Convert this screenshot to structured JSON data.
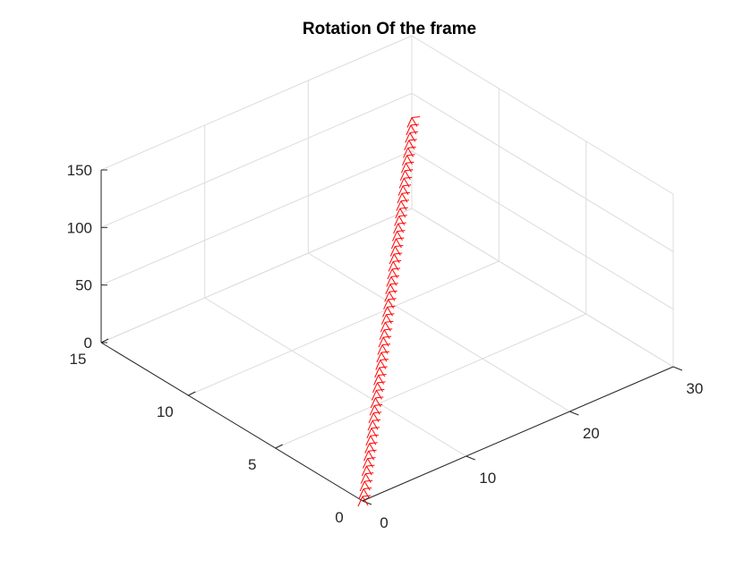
{
  "chart_data": {
    "type": "3d-line",
    "title": "Rotation Of the frame",
    "xlabel": "",
    "ylabel": "",
    "zlabel": "",
    "x_axis": {
      "range": [
        0,
        30
      ],
      "ticks": [
        0,
        10,
        20,
        30
      ]
    },
    "y_axis": {
      "range": [
        0,
        15
      ],
      "ticks": [
        0,
        5,
        10,
        15
      ]
    },
    "z_axis": {
      "range": [
        0,
        150
      ],
      "ticks": [
        0,
        50,
        100,
        150
      ]
    },
    "grid": true,
    "view": "3d-isometric",
    "series": [
      {
        "color": "#ff0000",
        "marker": "frame-glyph",
        "x": [
          0,
          0.6,
          1.2,
          1.8,
          2.4,
          3.0,
          3.6,
          4.2,
          4.8,
          5.4,
          6.0,
          6.6,
          7.2,
          7.8,
          8.4,
          9.0,
          9.6,
          10.2,
          10.8,
          11.4,
          12.0,
          12.6,
          13.2,
          13.8,
          14.4,
          15.0,
          15.6,
          16.2,
          16.8,
          17.4,
          18.0,
          18.6,
          19.2,
          19.8,
          20.4,
          21.0,
          21.6,
          22.2,
          22.8,
          23.4,
          24.0,
          24.6,
          25.2,
          25.8,
          26.4,
          27.0,
          27.6,
          28.2,
          28.8,
          29.4,
          30.0
        ],
        "y": [
          0,
          0.3,
          0.6,
          0.9,
          1.2,
          1.5,
          1.8,
          2.1,
          2.4,
          2.7,
          3.0,
          3.3,
          3.6,
          3.9,
          4.2,
          4.5,
          4.8,
          5.1,
          5.4,
          5.7,
          6.0,
          6.3,
          6.6,
          6.9,
          7.2,
          7.5,
          7.8,
          8.1,
          8.4,
          8.7,
          9.0,
          9.3,
          9.6,
          9.9,
          10.2,
          10.5,
          10.8,
          11.1,
          11.4,
          11.7,
          12.0,
          12.3,
          12.6,
          12.9,
          13.2,
          13.5,
          13.8,
          14.1,
          14.4,
          14.7,
          15.0
        ],
        "z": [
          0,
          1.5,
          3.0,
          4.5,
          6.0,
          7.5,
          9.0,
          10.5,
          12.0,
          13.5,
          15.0,
          16.5,
          18.0,
          19.5,
          21.0,
          22.5,
          24.0,
          25.5,
          27.0,
          28.5,
          30.0,
          31.5,
          33.0,
          34.5,
          36.0,
          37.5,
          39.0,
          40.5,
          42.0,
          43.5,
          45.0,
          46.5,
          48.0,
          49.5,
          51.0,
          52.5,
          54.0,
          55.5,
          57.0,
          58.5,
          60.0,
          61.5,
          63.0,
          64.5,
          66.0,
          67.5,
          69.0,
          70.5,
          72.0,
          73.5,
          75.0
        ]
      }
    ]
  }
}
